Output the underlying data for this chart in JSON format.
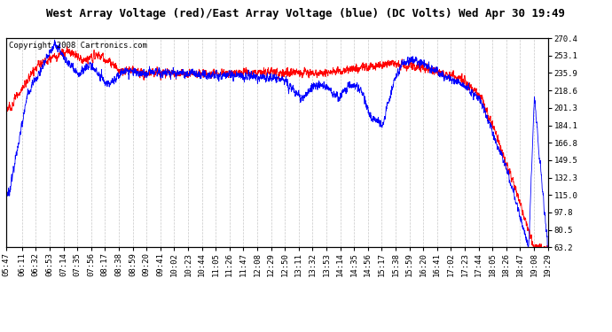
{
  "title": "West Array Voltage (red)/East Array Voltage (blue) (DC Volts) Wed Apr 30 19:49",
  "copyright": "Copyright 2008 Cartronics.com",
  "ylim": [
    63.2,
    270.4
  ],
  "yticks": [
    63.2,
    80.5,
    97.8,
    115.0,
    132.3,
    149.5,
    166.8,
    184.1,
    201.3,
    218.6,
    235.9,
    253.1,
    270.4
  ],
  "xtick_labels": [
    "05:47",
    "06:11",
    "06:32",
    "06:53",
    "07:14",
    "07:35",
    "07:56",
    "08:17",
    "08:38",
    "08:59",
    "09:20",
    "09:41",
    "10:02",
    "10:23",
    "10:44",
    "11:05",
    "11:26",
    "11:47",
    "12:08",
    "12:29",
    "12:50",
    "13:11",
    "13:32",
    "13:53",
    "14:14",
    "14:35",
    "14:56",
    "15:17",
    "15:38",
    "15:59",
    "16:20",
    "16:41",
    "17:02",
    "17:23",
    "17:44",
    "18:05",
    "18:26",
    "18:47",
    "19:08",
    "19:29"
  ],
  "background_color": "#ffffff",
  "plot_bg_color": "#ffffff",
  "grid_color": "#c8c8c8",
  "red_color": "#ff0000",
  "blue_color": "#0000ff",
  "title_fontsize": 9,
  "copyright_fontsize": 6.5,
  "tick_fontsize": 6.5
}
